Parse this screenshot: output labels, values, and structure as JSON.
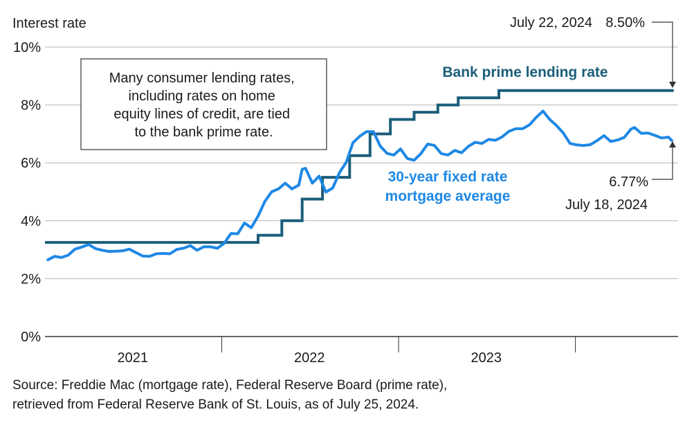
{
  "chart_data": {
    "type": "line",
    "ylabel": "Interest rate",
    "ylim": [
      0,
      10
    ],
    "yticks": [
      0,
      2,
      4,
      6,
      8,
      10
    ],
    "ytick_labels": [
      "0%",
      "2%",
      "4%",
      "6%",
      "8%",
      "10%"
    ],
    "xlim": [
      "2021-01-01",
      "2024-07-31"
    ],
    "xtick_labels": [
      {
        "label": "2021",
        "x": "2021-07-01"
      },
      {
        "label": "2022",
        "x": "2022-07-01"
      },
      {
        "label": "2023",
        "x": "2023-07-01"
      }
    ],
    "year_dividers": [
      "2022-01-01",
      "2023-01-01",
      "2024-01-01"
    ],
    "grid": true,
    "series": [
      {
        "name": "Bank prime lending rate",
        "color": "#1b5e7a",
        "step": true,
        "points": [
          [
            "2021-01-01",
            3.25
          ],
          [
            "2022-03-17",
            3.5
          ],
          [
            "2022-05-05",
            4.0
          ],
          [
            "2022-06-16",
            4.75
          ],
          [
            "2022-07-28",
            5.5
          ],
          [
            "2022-09-22",
            6.25
          ],
          [
            "2022-11-03",
            7.0
          ],
          [
            "2022-12-15",
            7.5
          ],
          [
            "2023-02-02",
            7.75
          ],
          [
            "2023-03-23",
            8.0
          ],
          [
            "2023-05-04",
            8.25
          ],
          [
            "2023-07-27",
            8.5
          ],
          [
            "2024-07-22",
            8.5
          ]
        ]
      },
      {
        "name": "30-year fixed rate mortgage average",
        "color": "#1e88e5",
        "step": false,
        "points": [
          [
            "2021-01-07",
            2.65
          ],
          [
            "2021-01-21",
            2.77
          ],
          [
            "2021-02-04",
            2.73
          ],
          [
            "2021-02-18",
            2.81
          ],
          [
            "2021-03-04",
            3.02
          ],
          [
            "2021-03-18",
            3.09
          ],
          [
            "2021-04-01",
            3.18
          ],
          [
            "2021-04-15",
            3.04
          ],
          [
            "2021-04-29",
            2.98
          ],
          [
            "2021-05-13",
            2.94
          ],
          [
            "2021-05-27",
            2.95
          ],
          [
            "2021-06-10",
            2.96
          ],
          [
            "2021-06-24",
            3.02
          ],
          [
            "2021-07-08",
            2.9
          ],
          [
            "2021-07-22",
            2.78
          ],
          [
            "2021-08-05",
            2.77
          ],
          [
            "2021-08-19",
            2.86
          ],
          [
            "2021-09-02",
            2.87
          ],
          [
            "2021-09-16",
            2.86
          ],
          [
            "2021-09-30",
            3.01
          ],
          [
            "2021-10-14",
            3.05
          ],
          [
            "2021-10-28",
            3.14
          ],
          [
            "2021-11-11",
            2.98
          ],
          [
            "2021-11-25",
            3.1
          ],
          [
            "2021-12-09",
            3.1
          ],
          [
            "2021-12-23",
            3.05
          ],
          [
            "2022-01-06",
            3.22
          ],
          [
            "2022-01-20",
            3.56
          ],
          [
            "2022-02-03",
            3.55
          ],
          [
            "2022-02-17",
            3.92
          ],
          [
            "2022-03-03",
            3.76
          ],
          [
            "2022-03-17",
            4.16
          ],
          [
            "2022-03-31",
            4.67
          ],
          [
            "2022-04-14",
            5.0
          ],
          [
            "2022-04-28",
            5.1
          ],
          [
            "2022-05-12",
            5.3
          ],
          [
            "2022-05-26",
            5.1
          ],
          [
            "2022-06-09",
            5.23
          ],
          [
            "2022-06-16",
            5.78
          ],
          [
            "2022-06-23",
            5.81
          ],
          [
            "2022-07-07",
            5.3
          ],
          [
            "2022-07-21",
            5.54
          ],
          [
            "2022-08-04",
            4.99
          ],
          [
            "2022-08-18",
            5.13
          ],
          [
            "2022-09-01",
            5.66
          ],
          [
            "2022-09-15",
            6.02
          ],
          [
            "2022-09-29",
            6.7
          ],
          [
            "2022-10-13",
            6.92
          ],
          [
            "2022-10-27",
            7.08
          ],
          [
            "2022-11-10",
            7.08
          ],
          [
            "2022-11-24",
            6.58
          ],
          [
            "2022-12-08",
            6.33
          ],
          [
            "2022-12-22",
            6.27
          ],
          [
            "2023-01-05",
            6.48
          ],
          [
            "2023-01-19",
            6.15
          ],
          [
            "2023-02-02",
            6.09
          ],
          [
            "2023-02-16",
            6.32
          ],
          [
            "2023-03-02",
            6.65
          ],
          [
            "2023-03-16",
            6.6
          ],
          [
            "2023-03-30",
            6.32
          ],
          [
            "2023-04-13",
            6.27
          ],
          [
            "2023-04-27",
            6.43
          ],
          [
            "2023-05-11",
            6.35
          ],
          [
            "2023-05-25",
            6.57
          ],
          [
            "2023-06-08",
            6.71
          ],
          [
            "2023-06-22",
            6.67
          ],
          [
            "2023-07-06",
            6.81
          ],
          [
            "2023-07-20",
            6.78
          ],
          [
            "2023-08-03",
            6.9
          ],
          [
            "2023-08-17",
            7.09
          ],
          [
            "2023-08-31",
            7.18
          ],
          [
            "2023-09-14",
            7.18
          ],
          [
            "2023-09-28",
            7.31
          ],
          [
            "2023-10-12",
            7.57
          ],
          [
            "2023-10-26",
            7.79
          ],
          [
            "2023-11-09",
            7.5
          ],
          [
            "2023-11-23",
            7.29
          ],
          [
            "2023-12-07",
            7.03
          ],
          [
            "2023-12-21",
            6.67
          ],
          [
            "2024-01-04",
            6.62
          ],
          [
            "2024-01-18",
            6.6
          ],
          [
            "2024-02-01",
            6.63
          ],
          [
            "2024-02-15",
            6.77
          ],
          [
            "2024-02-29",
            6.94
          ],
          [
            "2024-03-14",
            6.74
          ],
          [
            "2024-03-28",
            6.79
          ],
          [
            "2024-04-11",
            6.88
          ],
          [
            "2024-04-25",
            7.17
          ],
          [
            "2024-05-02",
            7.22
          ],
          [
            "2024-05-16",
            7.02
          ],
          [
            "2024-05-30",
            7.03
          ],
          [
            "2024-06-13",
            6.95
          ],
          [
            "2024-06-27",
            6.86
          ],
          [
            "2024-07-11",
            6.89
          ],
          [
            "2024-07-18",
            6.77
          ]
        ]
      }
    ],
    "annotations": {
      "prime_end_date": "July 22, 2024",
      "prime_end_value": "8.50%",
      "mortgage_end_value": "6.77%",
      "mortgage_end_date": "July 18, 2024",
      "prime_label": "Bank prime lending rate",
      "mortgage_label_1": "30-year fixed rate",
      "mortgage_label_2": "mortgage average",
      "note_lines": [
        "Many consumer lending rates,",
        "including rates on home",
        "equity lines of credit, are tied",
        "to the bank prime rate."
      ]
    }
  },
  "source": {
    "line1": "Source: Freddie Mac (mortgage rate), Federal Reserve Board (prime rate),",
    "line2": "retrieved from Federal Reserve Bank of St. Louis, as of July 25, 2024."
  }
}
